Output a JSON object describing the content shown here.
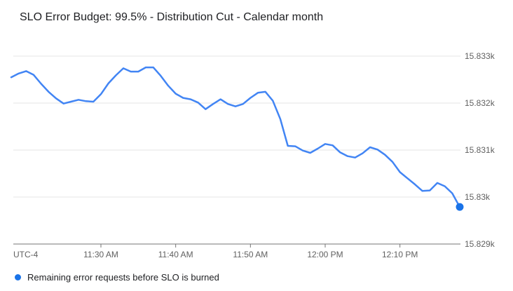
{
  "chart": {
    "title": "SLO Error Budget: 99.5% - Distribution Cut - Calendar month"
  },
  "legend": {
    "label": "Remaining error requests before SLO is burned"
  },
  "colors": {
    "line": "#4285f4",
    "endpoint": "#1a73e8",
    "gridline": "#e6e6e6",
    "axis": "#757575",
    "axis_text": "#616161",
    "title_text": "#202124",
    "legend_dot": "#1a73e8"
  },
  "chart_data": {
    "type": "line",
    "title": "SLO Error Budget: 99.5% - Distribution Cut - Calendar month",
    "xlabel": "",
    "ylabel": "",
    "timezone_label": "UTC-4",
    "grid": true,
    "legend_position": "bottom",
    "endpoint_marker": true,
    "ylim": [
      15829,
      15833
    ],
    "y_ticks": {
      "labels": [
        "15.833k",
        "15.832k",
        "15.831k",
        "15.83k",
        "15.829k"
      ],
      "values": [
        15833,
        15832,
        15831,
        15830,
        15829
      ]
    },
    "x_ticks": {
      "labels": [
        "11:30 AM",
        "11:40 AM",
        "11:50 AM",
        "12:00 PM",
        "12:10 PM"
      ],
      "indices": [
        12,
        22,
        32,
        42,
        52
      ]
    },
    "x": [
      "11:18 AM",
      "11:19 AM",
      "11:20 AM",
      "11:21 AM",
      "11:22 AM",
      "11:23 AM",
      "11:24 AM",
      "11:25 AM",
      "11:26 AM",
      "11:27 AM",
      "11:28 AM",
      "11:29 AM",
      "11:30 AM",
      "11:31 AM",
      "11:32 AM",
      "11:33 AM",
      "11:34 AM",
      "11:35 AM",
      "11:36 AM",
      "11:37 AM",
      "11:38 AM",
      "11:39 AM",
      "11:40 AM",
      "11:41 AM",
      "11:42 AM",
      "11:43 AM",
      "11:44 AM",
      "11:45 AM",
      "11:46 AM",
      "11:47 AM",
      "11:48 AM",
      "11:49 AM",
      "11:50 AM",
      "11:51 AM",
      "11:52 AM",
      "11:53 AM",
      "11:54 AM",
      "11:55 AM",
      "11:56 AM",
      "11:57 AM",
      "11:58 AM",
      "11:59 AM",
      "12:00 PM",
      "12:01 PM",
      "12:02 PM",
      "12:03 PM",
      "12:04 PM",
      "12:05 PM",
      "12:06 PM",
      "12:07 PM",
      "12:08 PM",
      "12:09 PM",
      "12:10 PM",
      "12:11 PM",
      "12:12 PM",
      "12:13 PM",
      "12:14 PM",
      "12:15 PM",
      "12:16 PM",
      "12:17 PM",
      "12:18 PM"
    ],
    "series": [
      {
        "name": "Remaining error requests before SLO is burned",
        "color": "#4285f4",
        "values": [
          15832.55,
          15832.63,
          15832.68,
          15832.6,
          15832.41,
          15832.24,
          15832.1,
          15831.99,
          15832.03,
          15832.07,
          15832.04,
          15832.03,
          15832.19,
          15832.42,
          15832.59,
          15832.74,
          15832.67,
          15832.67,
          15832.76,
          15832.76,
          15832.58,
          15832.37,
          15832.2,
          15832.11,
          15832.08,
          15832.01,
          15831.87,
          15831.98,
          15832.08,
          15831.98,
          15831.93,
          15831.98,
          15832.11,
          15832.22,
          15832.24,
          15832.05,
          15831.66,
          15831.09,
          15831.08,
          15830.99,
          15830.94,
          15831.03,
          15831.13,
          15831.1,
          15830.95,
          15830.87,
          15830.84,
          15830.93,
          15831.06,
          15831.01,
          15830.9,
          15830.75,
          15830.53,
          15830.4,
          15830.27,
          15830.13,
          15830.14,
          15830.3,
          15830.23,
          15830.08,
          15829.79
        ]
      }
    ]
  }
}
